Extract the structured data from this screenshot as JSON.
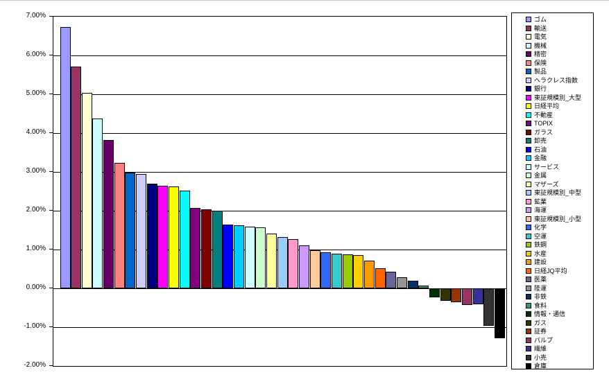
{
  "chart_data": {
    "type": "bar",
    "title": "",
    "xlabel": "",
    "ylabel": "",
    "value_format": "percent",
    "grid": true,
    "legend_position": "right",
    "ylim": [
      -2.0,
      7.0
    ],
    "ytick_values": [
      7,
      6,
      5,
      4,
      3,
      2,
      1,
      0,
      -1,
      -2
    ],
    "ytick_labels": [
      "7.00%",
      "6.00%",
      "5.00%",
      "4.00%",
      "3.00%",
      "2.00%",
      "1.00%",
      "0.00%",
      "-1.00%",
      "-2.00%"
    ],
    "categories": [
      "ゴム",
      "輸送",
      "電気",
      "機械",
      "精密",
      "保険",
      "製品",
      "ヘラクレス指数",
      "銀行",
      "東証規模別_大型",
      "日経平均",
      "不動産",
      "TOPIX",
      "ガラス",
      "卸売",
      "石油",
      "金融",
      "サービス",
      "金属",
      "マザーズ",
      "東証規模別_中型",
      "鉱業",
      "海運",
      "東証規模別_小型",
      "化学",
      "空運",
      "鉄鋼",
      "水産",
      "建設",
      "日経JQ平均",
      "医薬",
      "陸運",
      "非鉄",
      "食料",
      "情報・通信",
      "ガス",
      "証券",
      "パルプ",
      "繊維",
      "小売",
      "倉庫"
    ],
    "values": [
      6.74,
      5.71,
      5.04,
      4.37,
      3.82,
      3.24,
      2.98,
      2.95,
      2.69,
      2.65,
      2.63,
      2.51,
      2.08,
      2.04,
      2.0,
      1.65,
      1.62,
      1.59,
      1.58,
      1.41,
      1.33,
      1.27,
      1.1,
      0.98,
      0.92,
      0.89,
      0.88,
      0.86,
      0.72,
      0.52,
      0.43,
      0.28,
      0.2,
      0.08,
      -0.24,
      -0.32,
      -0.36,
      -0.43,
      -0.41,
      -0.97,
      -1.28
    ],
    "colors": [
      "#9999FF",
      "#993366",
      "#FFFFCC",
      "#CCFFFF",
      "#660066",
      "#FF8080",
      "#0066CC",
      "#CCCCFF",
      "#000080",
      "#FF00FF",
      "#FFFF00",
      "#00FFFF",
      "#800080",
      "#800000",
      "#008080",
      "#0000FF",
      "#00CCFF",
      "#CCFFFF",
      "#CCFFCC",
      "#FFFF99",
      "#99CCFF",
      "#FF99CC",
      "#CC99FF",
      "#FFCC99",
      "#3366FF",
      "#33CCCC",
      "#99CC00",
      "#FFCC00",
      "#FF9900",
      "#FF6600",
      "#666699",
      "#969696",
      "#003366",
      "#339966",
      "#003300",
      "#333300",
      "#993300",
      "#993366",
      "#333399",
      "#333333",
      "#000000"
    ],
    "bar_border_color": "#000000",
    "gridline_color": "#000000",
    "plot_background": "#FFFFFF",
    "legend_border_color": "#000000"
  }
}
